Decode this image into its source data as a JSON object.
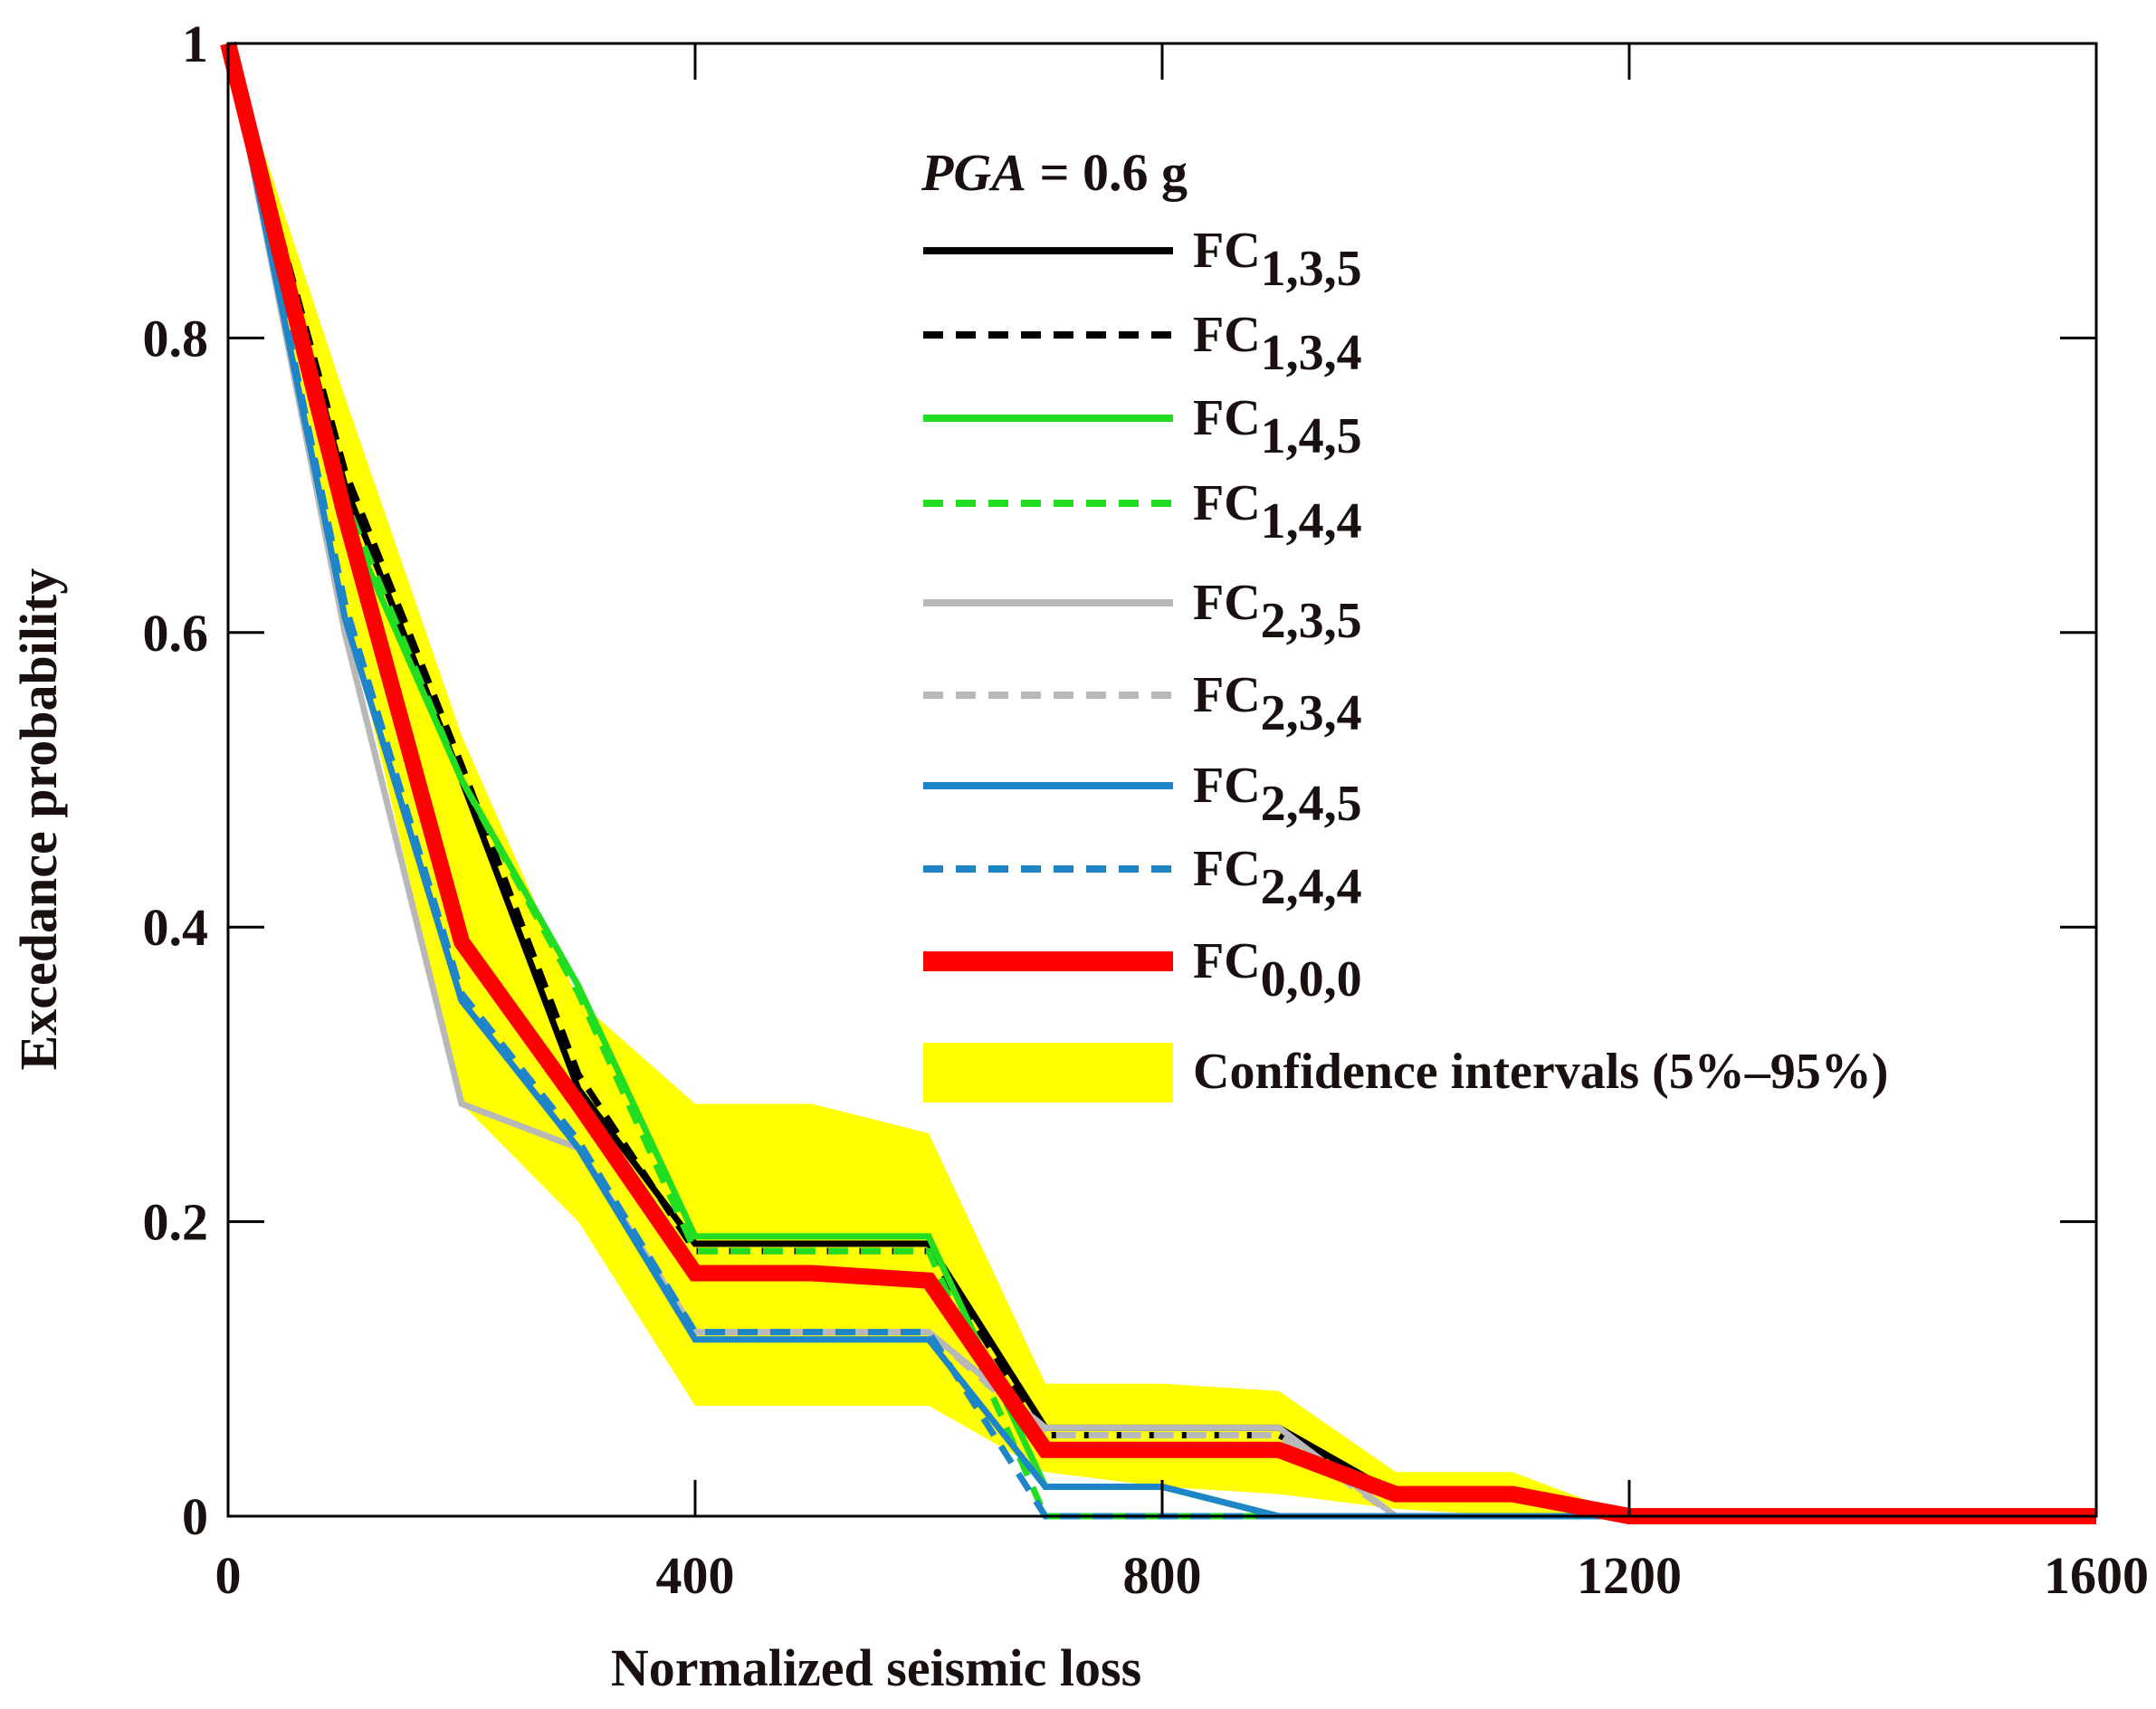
{
  "chart_data": {
    "type": "line",
    "title": "",
    "xlabel": "Normalized seismic loss",
    "ylabel": "Excedance probability",
    "xlim": [
      0,
      1600
    ],
    "ylim": [
      0,
      1
    ],
    "xticks": [
      0,
      400,
      800,
      1200,
      1600
    ],
    "xtick_labels": [
      "0",
      "400",
      "800",
      "1200",
      "1600"
    ],
    "yticks": [
      0,
      0.2,
      0.4,
      0.6,
      0.8,
      1
    ],
    "ytick_labels": [
      "0",
      "0.2",
      "0.4",
      "0.6",
      "0.8",
      "1"
    ],
    "grid": false,
    "legend": {
      "position": "top-right",
      "title_italic": "PGA",
      "title_rest": " = 0.6 g"
    },
    "series": [
      {
        "name": "FC",
        "sub": "1,3,5",
        "color": "#000000",
        "dash": "solid",
        "width": "normal",
        "x": [
          0,
          100,
          200,
          300,
          400,
          500,
          600,
          700,
          800,
          900,
          1000,
          1100,
          1200,
          1600
        ],
        "y": [
          1.0,
          0.7,
          0.5,
          0.29,
          0.185,
          0.185,
          0.185,
          0.06,
          0.06,
          0.06,
          0.015,
          0.015,
          0.0,
          0.0
        ]
      },
      {
        "name": "FC",
        "sub": "1,3,4",
        "color": "#000000",
        "dash": "dashed",
        "width": "normal",
        "x": [
          0,
          100,
          200,
          300,
          400,
          500,
          600,
          700,
          800,
          900,
          1000,
          1100,
          1200,
          1600
        ],
        "y": [
          1.0,
          0.71,
          0.51,
          0.3,
          0.18,
          0.18,
          0.18,
          0.055,
          0.055,
          0.055,
          0.015,
          0.015,
          0.0,
          0.0
        ]
      },
      {
        "name": "FC",
        "sub": "1,4,5",
        "color": "#22dd22",
        "dash": "solid",
        "width": "normal",
        "x": [
          0,
          100,
          200,
          300,
          400,
          500,
          600,
          700,
          800,
          900,
          1000,
          1600
        ],
        "y": [
          1.0,
          0.68,
          0.5,
          0.36,
          0.19,
          0.19,
          0.19,
          0.02,
          0.02,
          0.0,
          0.0,
          0.0
        ]
      },
      {
        "name": "FC",
        "sub": "1,4,4",
        "color": "#22dd22",
        "dash": "dashed",
        "width": "normal",
        "x": [
          0,
          100,
          200,
          300,
          400,
          500,
          600,
          700,
          800,
          900,
          1000,
          1600
        ],
        "y": [
          1.0,
          0.69,
          0.5,
          0.355,
          0.18,
          0.18,
          0.18,
          0.0,
          0.0,
          0.0,
          0.0,
          0.0
        ]
      },
      {
        "name": "FC",
        "sub": "2,3,5",
        "color": "#b8b8b8",
        "dash": "solid",
        "width": "normal",
        "x": [
          0,
          100,
          200,
          300,
          400,
          500,
          600,
          700,
          800,
          900,
          1000,
          1100,
          1200,
          1600
        ],
        "y": [
          1.0,
          0.6,
          0.28,
          0.25,
          0.125,
          0.125,
          0.125,
          0.06,
          0.06,
          0.06,
          0.0,
          0.0,
          0.0,
          0.0
        ]
      },
      {
        "name": "FC",
        "sub": "2,3,4",
        "color": "#b8b8b8",
        "dash": "dashed",
        "width": "normal",
        "x": [
          0,
          100,
          200,
          300,
          400,
          500,
          600,
          700,
          800,
          900,
          1000,
          1600
        ],
        "y": [
          1.0,
          0.61,
          0.35,
          0.25,
          0.125,
          0.125,
          0.125,
          0.055,
          0.055,
          0.055,
          0.0,
          0.0
        ]
      },
      {
        "name": "FC",
        "sub": "2,4,5",
        "color": "#1e86c8",
        "dash": "solid",
        "width": "normal",
        "x": [
          0,
          100,
          200,
          300,
          400,
          500,
          600,
          700,
          800,
          900,
          1000,
          1600
        ],
        "y": [
          1.0,
          0.61,
          0.35,
          0.25,
          0.12,
          0.12,
          0.12,
          0.02,
          0.02,
          0.0,
          0.0,
          0.0
        ]
      },
      {
        "name": "FC",
        "sub": "2,4,4",
        "color": "#1e86c8",
        "dash": "dashed",
        "width": "normal",
        "x": [
          0,
          100,
          200,
          300,
          400,
          500,
          600,
          700,
          800,
          1600
        ],
        "y": [
          1.0,
          0.62,
          0.355,
          0.255,
          0.125,
          0.125,
          0.125,
          0.0,
          0.0,
          0.0
        ]
      },
      {
        "name": "FC",
        "sub": "0,0,0",
        "color": "#ff0000",
        "dash": "solid",
        "width": "thick",
        "x": [
          0,
          100,
          200,
          300,
          400,
          500,
          600,
          700,
          800,
          900,
          1000,
          1100,
          1200,
          1600
        ],
        "y": [
          1.0,
          0.68,
          0.39,
          0.28,
          0.165,
          0.165,
          0.16,
          0.045,
          0.045,
          0.045,
          0.015,
          0.015,
          0.0,
          0.0
        ]
      }
    ],
    "confidence_interval": {
      "name": "Confidence intervals (5%–95%)",
      "color": "#ffff00",
      "x": [
        0,
        100,
        200,
        300,
        400,
        500,
        600,
        700,
        800,
        900,
        1000,
        1100,
        1200,
        1600
      ],
      "upper": [
        1.0,
        0.76,
        0.53,
        0.35,
        0.28,
        0.28,
        0.26,
        0.09,
        0.09,
        0.085,
        0.03,
        0.03,
        0.0,
        0.0
      ],
      "lower": [
        1.0,
        0.62,
        0.28,
        0.2,
        0.075,
        0.075,
        0.075,
        0.03,
        0.02,
        0.015,
        0.005,
        0.0,
        0.0,
        0.0
      ]
    }
  }
}
